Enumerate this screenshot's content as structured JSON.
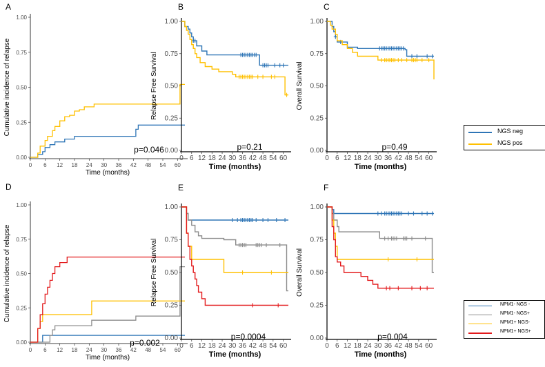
{
  "colors": {
    "neg": "#2e75b6",
    "pos": "#ffc000",
    "npm1neg_ngsneg": "#2e75b6",
    "npm1neg_ngspos": "#8c8c8c",
    "npm1pos_ngsneg": "#ffc000",
    "npm1pos_ngspos": "#e31a1c"
  },
  "legend_top": {
    "items": [
      {
        "label": "NGS neg",
        "color": "#2e75b6"
      },
      {
        "label": "NGS pos",
        "color": "#ffc000"
      }
    ]
  },
  "legend_bottom": {
    "items": [
      {
        "label": "NPM1- NGS -",
        "color": "#2e75b6"
      },
      {
        "label": "NPM1- NGS+",
        "color": "#8c8c8c"
      },
      {
        "label": "NPM1+ NGS-",
        "color": "#ffc000"
      },
      {
        "label": "NPM1+ NGS+",
        "color": "#e31a1c"
      }
    ]
  },
  "chart_data": [
    {
      "panel": "A",
      "type": "line",
      "style": "cumulative",
      "xlabel": "Time (months)",
      "ylabel": "Cumulative incidence of relapse",
      "xlim": [
        0,
        63
      ],
      "ylim": [
        0,
        1
      ],
      "xticks": [
        0,
        6,
        12,
        18,
        24,
        30,
        36,
        42,
        48,
        54,
        60
      ],
      "yticks": [
        0,
        0.25,
        0.5,
        0.75,
        1
      ],
      "ytick_labels": [
        "0.00",
        "0.25",
        "0.50",
        "0.75",
        "1.00"
      ],
      "pvalue": "p=0.046",
      "series": [
        {
          "name": "NGS neg",
          "colorKey": "neg",
          "x": [
            0,
            3,
            5,
            6,
            8,
            10,
            14,
            18,
            22,
            30,
            43,
            44,
            60,
            63
          ],
          "y": [
            0,
            0.02,
            0.04,
            0.07,
            0.09,
            0.11,
            0.13,
            0.15,
            0.15,
            0.15,
            0.2,
            0.23,
            0.23,
            0.23
          ]
        },
        {
          "name": "NGS pos",
          "colorKey": "pos",
          "x": [
            0,
            3,
            4,
            6,
            7,
            9,
            10,
            12,
            14,
            16,
            18,
            20,
            22,
            26,
            60,
            61,
            63
          ],
          "y": [
            0,
            0.03,
            0.08,
            0.12,
            0.15,
            0.19,
            0.22,
            0.26,
            0.29,
            0.3,
            0.33,
            0.34,
            0.36,
            0.38,
            0.38,
            0.52,
            0.52
          ]
        }
      ]
    },
    {
      "panel": "B",
      "type": "line",
      "style": "survival",
      "xlabel": "Time (months)",
      "ylabel": "Relapse Free Survival",
      "xlim": [
        0,
        63
      ],
      "ylim": [
        0,
        1
      ],
      "xticks": [
        0,
        6,
        12,
        18,
        24,
        30,
        36,
        42,
        48,
        54,
        60
      ],
      "yticks": [
        0,
        0.25,
        0.5,
        0.75,
        1
      ],
      "ytick_labels": [
        "0.00",
        "0.25",
        "0.50",
        "0.75",
        "1.00"
      ],
      "pvalue": "p=0.21",
      "series": [
        {
          "name": "NGS neg",
          "colorKey": "neg",
          "x": [
            0,
            2,
            4,
            5,
            6,
            7,
            9,
            12,
            15,
            18,
            45,
            46,
            63
          ],
          "y": [
            1,
            0.96,
            0.94,
            0.91,
            0.88,
            0.85,
            0.81,
            0.77,
            0.74,
            0.74,
            0.74,
            0.66,
            0.66
          ],
          "censor_x": [
            7,
            8,
            35,
            36,
            37,
            38,
            39,
            40,
            41,
            42,
            43,
            44,
            48,
            49,
            50,
            51,
            55,
            58,
            60
          ]
        },
        {
          "name": "NGS pos",
          "colorKey": "pos",
          "x": [
            0,
            2,
            3,
            4,
            5,
            6,
            7,
            8,
            9,
            11,
            14,
            18,
            22,
            30,
            32,
            60,
            61,
            63
          ],
          "y": [
            1,
            0.96,
            0.93,
            0.9,
            0.86,
            0.82,
            0.79,
            0.75,
            0.72,
            0.68,
            0.65,
            0.63,
            0.61,
            0.59,
            0.57,
            0.57,
            0.43,
            0.43
          ],
          "censor_x": [
            34,
            35,
            36,
            37,
            38,
            39,
            40,
            41,
            42,
            45,
            48,
            53,
            55,
            62
          ]
        }
      ]
    },
    {
      "panel": "C",
      "type": "line",
      "style": "survival",
      "xlabel": "Time (months)",
      "ylabel": "Overall Survival",
      "xlim": [
        0,
        63
      ],
      "ylim": [
        0,
        1
      ],
      "xticks": [
        0,
        6,
        12,
        18,
        24,
        30,
        36,
        42,
        48,
        54,
        60
      ],
      "yticks": [
        0,
        0.25,
        0.5,
        0.75,
        1
      ],
      "ytick_labels": [
        "0.00",
        "0.25",
        "0.50",
        "0.75",
        "1.00"
      ],
      "pvalue": "p=0.49",
      "series": [
        {
          "name": "NGS neg",
          "colorKey": "neg",
          "x": [
            0,
            3,
            4,
            5,
            6,
            12,
            15,
            18,
            46,
            47,
            63
          ],
          "y": [
            1,
            0.96,
            0.92,
            0.88,
            0.84,
            0.8,
            0.8,
            0.79,
            0.78,
            0.73,
            0.73
          ],
          "censor_x": [
            5,
            8,
            31,
            32,
            33,
            34,
            35,
            36,
            37,
            38,
            39,
            40,
            41,
            42,
            43,
            44,
            45,
            50,
            53,
            59,
            62
          ]
        },
        {
          "name": "NGS pos",
          "colorKey": "pos",
          "x": [
            0,
            2,
            3,
            5,
            6,
            9,
            12,
            15,
            18,
            30,
            62,
            63
          ],
          "y": [
            1,
            0.97,
            0.94,
            0.9,
            0.85,
            0.82,
            0.79,
            0.76,
            0.73,
            0.7,
            0.7,
            0.55
          ],
          "censor_x": [
            32,
            34,
            35,
            36,
            37,
            38,
            39,
            40,
            42,
            44,
            47,
            50,
            51,
            52,
            53,
            56,
            60
          ]
        }
      ]
    },
    {
      "panel": "D",
      "type": "line",
      "style": "cumulative",
      "xlabel": "Time (months)",
      "ylabel": "Cumulative incidence of relapse",
      "xlim": [
        0,
        63
      ],
      "ylim": [
        0,
        1
      ],
      "xticks": [
        0,
        6,
        12,
        18,
        24,
        30,
        36,
        42,
        48,
        54,
        60
      ],
      "yticks": [
        0,
        0.25,
        0.5,
        0.75,
        1
      ],
      "ytick_labels": [
        "0.00",
        "0.25",
        "0.50",
        "0.75",
        "1.00"
      ],
      "pvalue": "p=0.002",
      "series": [
        {
          "name": "NPM1- NGS -",
          "colorKey": "npm1neg_ngsneg",
          "x": [
            0,
            5,
            63
          ],
          "y": [
            0,
            0.05,
            0.05
          ]
        },
        {
          "name": "NPM1- NGS+",
          "colorKey": "npm1neg_ngspos",
          "x": [
            0,
            7,
            8,
            9,
            10,
            24,
            25,
            42,
            43,
            60,
            61,
            63
          ],
          "y": [
            0,
            0,
            0.05,
            0.09,
            0.12,
            0.12,
            0.16,
            0.16,
            0.19,
            0.19,
            0.55,
            0.55
          ]
        },
        {
          "name": "NPM1+ NGS-",
          "colorKey": "npm1pos_ngsneg",
          "x": [
            0,
            3,
            4,
            5,
            24,
            25,
            63
          ],
          "y": [
            0,
            0.1,
            0.15,
            0.2,
            0.2,
            0.3,
            0.3
          ]
        },
        {
          "name": "NPM1+ NGS+",
          "colorKey": "npm1pos_ngspos",
          "x": [
            0,
            3,
            4,
            5,
            6,
            7,
            8,
            9,
            10,
            12,
            15,
            63
          ],
          "y": [
            0,
            0.1,
            0.2,
            0.28,
            0.35,
            0.4,
            0.45,
            0.5,
            0.55,
            0.58,
            0.62,
            0.62
          ]
        }
      ]
    },
    {
      "panel": "E",
      "type": "line",
      "style": "survival",
      "xlabel": "Time (months)",
      "ylabel": "Relapse Free Survival",
      "xlim": [
        0,
        63
      ],
      "ylim": [
        0,
        1
      ],
      "xticks": [
        0,
        6,
        12,
        18,
        24,
        30,
        36,
        42,
        48,
        54,
        60
      ],
      "yticks": [
        0,
        0.25,
        0.5,
        0.75,
        1
      ],
      "ytick_labels": [
        "0.00",
        "0.25",
        "0.50",
        "0.75",
        "1.00"
      ],
      "pvalue": "p=0.0004",
      "series": [
        {
          "name": "NPM1- NGS -",
          "colorKey": "npm1neg_ngsneg",
          "x": [
            0,
            3,
            4,
            63
          ],
          "y": [
            1,
            0.95,
            0.9,
            0.9
          ],
          "censor_x": [
            30,
            33,
            35,
            36,
            37,
            38,
            39,
            40,
            41,
            42,
            44,
            48,
            51,
            56,
            61
          ]
        },
        {
          "name": "NPM1- NGS+",
          "colorKey": "npm1neg_ngspos",
          "x": [
            0,
            3,
            4,
            6,
            8,
            10,
            12,
            24,
            25,
            32,
            61,
            62,
            63
          ],
          "y": [
            1,
            0.95,
            0.9,
            0.86,
            0.81,
            0.78,
            0.76,
            0.76,
            0.75,
            0.71,
            0.71,
            0.36,
            0.36
          ],
          "censor_x": [
            34,
            35,
            36,
            37,
            38,
            44,
            45,
            46,
            47,
            50,
            58
          ]
        },
        {
          "name": "NPM1+ NGS-",
          "colorKey": "npm1pos_ngsneg",
          "x": [
            0,
            3,
            4,
            6,
            8,
            24,
            25,
            63
          ],
          "y": [
            1,
            0.8,
            0.7,
            0.6,
            0.6,
            0.6,
            0.5,
            0.5
          ],
          "censor_x": [
            36,
            53
          ]
        },
        {
          "name": "NPM1+ NGS+",
          "colorKey": "npm1pos_ngspos",
          "x": [
            0,
            3,
            4,
            5,
            6,
            7,
            8,
            9,
            10,
            12,
            14,
            63
          ],
          "y": [
            1,
            0.8,
            0.7,
            0.6,
            0.55,
            0.5,
            0.45,
            0.4,
            0.35,
            0.3,
            0.25,
            0.25
          ],
          "censor_x": [
            42,
            57
          ]
        }
      ]
    },
    {
      "panel": "F",
      "type": "line",
      "style": "survival",
      "xlabel": "Time (months)",
      "ylabel": "Overall Survival",
      "xlim": [
        0,
        63
      ],
      "ylim": [
        0,
        1
      ],
      "xticks": [
        0,
        6,
        12,
        18,
        24,
        30,
        36,
        42,
        48,
        54,
        60
      ],
      "yticks": [
        0,
        0.25,
        0.5,
        0.75,
        1
      ],
      "ytick_labels": [
        "0.00",
        "0.25",
        "0.50",
        "0.75",
        "1.00"
      ],
      "pvalue": "p=0.004",
      "series": [
        {
          "name": "NPM1- NGS -",
          "colorKey": "npm1neg_ngsneg",
          "x": [
            0,
            3,
            4,
            63
          ],
          "y": [
            1,
            0.98,
            0.95,
            0.95
          ],
          "censor_x": [
            30,
            32,
            34,
            35,
            36,
            37,
            38,
            39,
            40,
            41,
            42,
            43,
            44,
            48,
            51,
            56,
            59,
            62
          ]
        },
        {
          "name": "NPM1- NGS+",
          "colorKey": "npm1neg_ngspos",
          "x": [
            0,
            3,
            4,
            6,
            7,
            10,
            12,
            30,
            31,
            61,
            62,
            63
          ],
          "y": [
            1,
            0.95,
            0.9,
            0.85,
            0.81,
            0.81,
            0.81,
            0.81,
            0.76,
            0.76,
            0.5,
            0.5
          ],
          "censor_x": [
            34,
            36,
            38,
            39,
            40,
            41,
            45,
            46,
            47,
            50,
            58
          ]
        },
        {
          "name": "NPM1+ NGS-",
          "colorKey": "npm1pos_ngsneg",
          "x": [
            0,
            3,
            4,
            5,
            6,
            63
          ],
          "y": [
            1,
            0.9,
            0.8,
            0.7,
            0.6,
            0.6
          ],
          "censor_x": [
            36,
            53
          ]
        },
        {
          "name": "NPM1+ NGS+",
          "colorKey": "npm1pos_ngspos",
          "x": [
            0,
            3,
            4,
            5,
            6,
            8,
            10,
            18,
            20,
            24,
            27,
            30,
            63
          ],
          "y": [
            1,
            0.85,
            0.75,
            0.62,
            0.58,
            0.55,
            0.5,
            0.5,
            0.47,
            0.44,
            0.41,
            0.38,
            0.38
          ],
          "censor_x": [
            35,
            37,
            42,
            50,
            55,
            59
          ]
        }
      ]
    }
  ]
}
